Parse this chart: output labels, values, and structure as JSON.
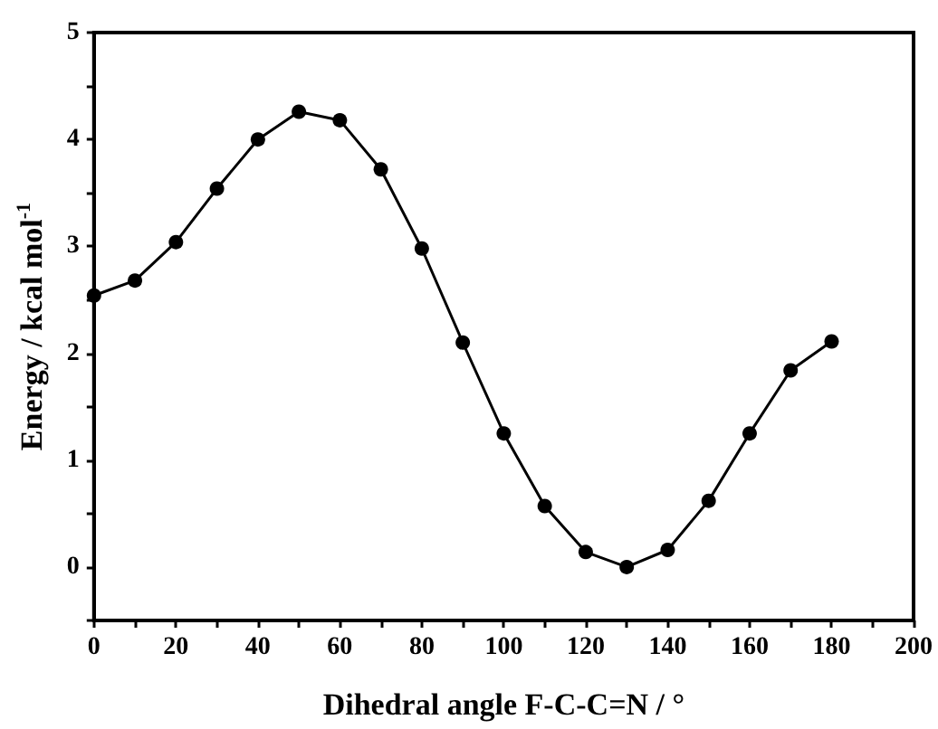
{
  "chart_data": {
    "type": "line",
    "xlabel": "Dihedral angle F-C-C=N / °",
    "ylabel": "Energy / kcal mol$^{-1}$",
    "x": [
      0,
      10,
      20,
      30,
      40,
      50,
      60,
      70,
      80,
      90,
      100,
      110,
      120,
      130,
      140,
      150,
      160,
      170,
      180
    ],
    "series": [
      {
        "color": "#000000",
        "values": [
          2.54,
          2.68,
          3.04,
          3.54,
          4.0,
          4.26,
          4.18,
          3.72,
          2.98,
          2.1,
          1.25,
          0.57,
          0.14,
          0.0,
          0.16,
          0.62,
          1.25,
          1.84,
          2.11
        ]
      }
    ],
    "xlim": [
      0,
      200
    ],
    "xticks": [
      0,
      {
        "value": 10,
        "label": null
      },
      20,
      {
        "value": 30,
        "label": null
      },
      40,
      {
        "value": 50,
        "label": null
      },
      60,
      {
        "value": 70,
        "label": null
      },
      80,
      {
        "value": 90,
        "label": null
      },
      100,
      {
        "value": 110,
        "label": null
      },
      120,
      {
        "value": 130,
        "label": null
      },
      140,
      {
        "value": 150,
        "label": null
      },
      160,
      {
        "value": 170,
        "label": null
      },
      180,
      {
        "value": 190,
        "label": null
      },
      200
    ],
    "ylim": [
      -0.5,
      5
    ],
    "yticks": [
      {
        "value": -0.5,
        "label": null
      },
      0,
      {
        "value": 0.5,
        "label": null
      },
      1,
      {
        "value": 1.5,
        "label": null
      },
      2,
      {
        "value": 2.5,
        "label": null
      },
      3,
      {
        "value": 3.5,
        "label": null
      },
      4,
      {
        "value": 4.5,
        "label": null
      },
      5
    ],
    "grid": false,
    "marker": "circle",
    "line_style": "solid"
  }
}
